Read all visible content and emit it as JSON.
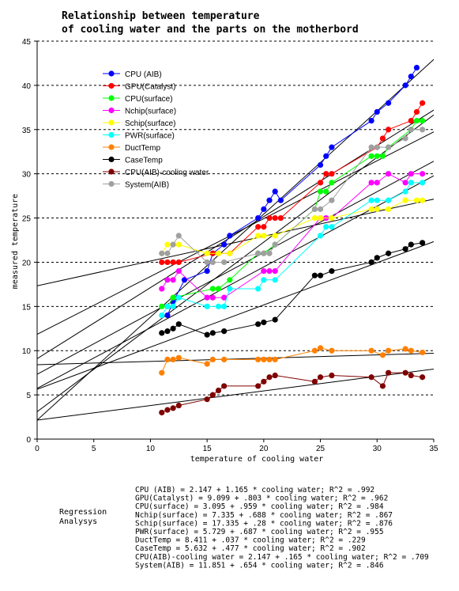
{
  "chart_data": {
    "type": "scatter",
    "title_lines": [
      "Relationship between temperature",
      "of cooling water and the parts on the motherbord"
    ],
    "xlabel": "temperature of cooling  water",
    "ylabel": "measured temperature",
    "xlim": [
      0,
      35
    ],
    "ylim": [
      0,
      45
    ],
    "x_ticks": [
      "0",
      "5",
      "10",
      "15",
      "20",
      "25",
      "30",
      "35"
    ],
    "y_ticks": [
      "0",
      "5",
      "10",
      "15",
      "20",
      "25",
      "30",
      "35",
      "40",
      "45"
    ],
    "grid": "horizontal dashed",
    "legend_position": "top-left",
    "series": [
      {
        "name": "CPU (AIB)",
        "color": "#0000ff",
        "intercept": 2.147,
        "slope": 1.165,
        "points": [
          [
            11.5,
            14
          ],
          [
            12,
            15.5
          ],
          [
            13,
            18
          ],
          [
            15,
            19
          ],
          [
            15.5,
            21
          ],
          [
            16.5,
            22
          ],
          [
            17,
            23
          ],
          [
            19.5,
            25
          ],
          [
            20,
            26
          ],
          [
            20.5,
            27
          ],
          [
            21,
            28
          ],
          [
            21.5,
            27
          ],
          [
            25,
            31
          ],
          [
            25.5,
            32
          ],
          [
            26,
            33
          ],
          [
            29.5,
            36
          ],
          [
            30,
            37
          ],
          [
            31,
            38
          ],
          [
            32.5,
            40
          ],
          [
            33,
            41
          ],
          [
            33.5,
            42
          ]
        ]
      },
      {
        "name": "GPU(Catalyst)",
        "color": "#ff0000",
        "intercept": 9.099,
        "slope": 0.803,
        "points": [
          [
            11,
            20
          ],
          [
            11.5,
            20
          ],
          [
            12,
            20
          ],
          [
            12.5,
            20
          ],
          [
            15.5,
            21
          ],
          [
            16,
            21
          ],
          [
            17,
            21
          ],
          [
            19.5,
            24
          ],
          [
            20,
            24
          ],
          [
            20.5,
            25
          ],
          [
            21,
            25
          ],
          [
            21.5,
            25
          ],
          [
            25,
            29
          ],
          [
            25.5,
            30
          ],
          [
            26,
            30
          ],
          [
            30,
            33
          ],
          [
            30.5,
            34
          ],
          [
            31,
            35
          ],
          [
            33,
            36
          ],
          [
            33.5,
            37
          ],
          [
            34,
            38
          ]
        ]
      },
      {
        "name": "CPU(surface)",
        "color": "#00ff00",
        "intercept": 3.095,
        "slope": 0.959,
        "points": [
          [
            11,
            15
          ],
          [
            11.5,
            15
          ],
          [
            12,
            16
          ],
          [
            15.5,
            17
          ],
          [
            16,
            17
          ],
          [
            17,
            18
          ],
          [
            19.5,
            21
          ],
          [
            20,
            21
          ],
          [
            21,
            22
          ],
          [
            24.5,
            26
          ],
          [
            25,
            28
          ],
          [
            25.5,
            28
          ],
          [
            26,
            29
          ],
          [
            29.5,
            32
          ],
          [
            30,
            32
          ],
          [
            30.5,
            32
          ],
          [
            31,
            33
          ],
          [
            33,
            35
          ],
          [
            33.5,
            36
          ],
          [
            34,
            36
          ]
        ]
      },
      {
        "name": "Nchip(surface)",
        "color": "#ff00ff",
        "intercept": 7.335,
        "slope": 0.688,
        "points": [
          [
            11,
            17
          ],
          [
            11.5,
            18
          ],
          [
            12,
            18
          ],
          [
            12.5,
            19
          ],
          [
            15,
            16
          ],
          [
            15.5,
            16
          ],
          [
            16.5,
            16
          ],
          [
            20,
            19
          ],
          [
            20.5,
            19
          ],
          [
            21,
            19
          ],
          [
            25,
            25
          ],
          [
            25.5,
            25
          ],
          [
            26,
            25
          ],
          [
            29.5,
            29
          ],
          [
            30,
            29
          ],
          [
            31,
            30
          ],
          [
            32.5,
            29
          ],
          [
            33,
            30
          ],
          [
            34,
            30
          ]
        ]
      },
      {
        "name": "Schip(surface)",
        "color": "#ffff00",
        "intercept": 17.335,
        "slope": 0.28,
        "points": [
          [
            11,
            21
          ],
          [
            11.5,
            22
          ],
          [
            12,
            22
          ],
          [
            12.5,
            22
          ],
          [
            15,
            21
          ],
          [
            16,
            21
          ],
          [
            17,
            21
          ],
          [
            19.5,
            23
          ],
          [
            20,
            23
          ],
          [
            21,
            23
          ],
          [
            24.5,
            25
          ],
          [
            25,
            25
          ],
          [
            26,
            25
          ],
          [
            29.5,
            26
          ],
          [
            30,
            26
          ],
          [
            31,
            26
          ],
          [
            32.5,
            27
          ],
          [
            33.5,
            27
          ],
          [
            34,
            27
          ]
        ]
      },
      {
        "name": "PWR(surface)",
        "color": "#00ffff",
        "intercept": 5.729,
        "slope": 0.687,
        "points": [
          [
            11,
            14
          ],
          [
            11.5,
            15
          ],
          [
            12,
            15
          ],
          [
            12.5,
            16
          ],
          [
            15,
            15
          ],
          [
            16,
            15
          ],
          [
            16.5,
            15
          ],
          [
            17,
            17
          ],
          [
            19.5,
            17
          ],
          [
            20,
            18
          ],
          [
            21,
            18
          ],
          [
            25,
            23
          ],
          [
            25.5,
            24
          ],
          [
            26,
            24
          ],
          [
            29.5,
            27
          ],
          [
            30,
            27
          ],
          [
            31,
            27
          ],
          [
            32.5,
            28
          ],
          [
            33,
            29
          ],
          [
            34,
            29
          ]
        ]
      },
      {
        "name": "DuctTemp",
        "color": "#ff8000",
        "intercept": 8.411,
        "slope": 0.037,
        "points": [
          [
            11,
            7.5
          ],
          [
            11.5,
            9
          ],
          [
            12,
            9
          ],
          [
            12.5,
            9.2
          ],
          [
            15,
            8.5
          ],
          [
            15.5,
            9
          ],
          [
            16.5,
            9
          ],
          [
            19.5,
            9
          ],
          [
            20,
            9
          ],
          [
            20.5,
            9
          ],
          [
            21,
            9
          ],
          [
            24.5,
            10
          ],
          [
            25,
            10.3
          ],
          [
            26,
            10
          ],
          [
            29.5,
            10
          ],
          [
            30.5,
            9.5
          ],
          [
            31,
            10
          ],
          [
            32.5,
            10.2
          ],
          [
            33,
            10
          ],
          [
            34,
            9.8
          ]
        ]
      },
      {
        "name": "CaseTemp",
        "color": "#000000",
        "intercept": 5.632,
        "slope": 0.477,
        "points": [
          [
            11,
            12
          ],
          [
            11.5,
            12.2
          ],
          [
            12,
            12.5
          ],
          [
            12.5,
            13
          ],
          [
            15,
            11.8
          ],
          [
            15.5,
            12
          ],
          [
            16.5,
            12.2
          ],
          [
            19.5,
            13
          ],
          [
            20,
            13.2
          ],
          [
            21,
            13.5
          ],
          [
            24.5,
            18.5
          ],
          [
            25,
            18.5
          ],
          [
            26,
            19
          ],
          [
            29.5,
            20
          ],
          [
            30,
            20.5
          ],
          [
            31,
            21
          ],
          [
            32.5,
            21.5
          ],
          [
            33,
            22
          ],
          [
            34,
            22.2
          ]
        ]
      },
      {
        "name": "CPU(AIB)-cooling water",
        "color": "#800000",
        "intercept": 2.147,
        "slope": 0.165,
        "points": [
          [
            11,
            3
          ],
          [
            11.5,
            3.3
          ],
          [
            12,
            3.5
          ],
          [
            12.5,
            3.8
          ],
          [
            15,
            4.5
          ],
          [
            15.5,
            5
          ],
          [
            16,
            5.5
          ],
          [
            16.5,
            6
          ],
          [
            19.5,
            6
          ],
          [
            20,
            6.5
          ],
          [
            20.5,
            7
          ],
          [
            21,
            7.2
          ],
          [
            24.5,
            6.5
          ],
          [
            25,
            7
          ],
          [
            26,
            7.2
          ],
          [
            29.5,
            7
          ],
          [
            30.5,
            6
          ],
          [
            31,
            7.5
          ],
          [
            32.5,
            7.5
          ],
          [
            33,
            7.2
          ],
          [
            34,
            7
          ]
        ]
      },
      {
        "name": "System(AIB)",
        "color": "#a0a0a0",
        "intercept": 11.851,
        "slope": 0.654,
        "points": [
          [
            11,
            21
          ],
          [
            11.5,
            21
          ],
          [
            12,
            22
          ],
          [
            12.5,
            23
          ],
          [
            15,
            20
          ],
          [
            15.5,
            20
          ],
          [
            16.5,
            20
          ],
          [
            19.5,
            21
          ],
          [
            20,
            21
          ],
          [
            20.5,
            21
          ],
          [
            21,
            22
          ],
          [
            24.5,
            26
          ],
          [
            25,
            26
          ],
          [
            26,
            27
          ],
          [
            29.5,
            33
          ],
          [
            30,
            33
          ],
          [
            31,
            33
          ],
          [
            32.5,
            34
          ],
          [
            33,
            35
          ],
          [
            34,
            35
          ]
        ]
      }
    ]
  },
  "regression": {
    "label_lines": [
      "Regression",
      "Analysys"
    ],
    "equations": [
      "CPU (AIB) = 2.147 + 1.165 * cooling water; R^2 = .992",
      "GPU(Catalyst) = 9.099 + .803 * cooling water; R^2 = .962",
      "CPU(surface) = 3.095 + .959 * cooling water; R^2 = .984",
      "Nchip(surface) = 7.335 + .688 * cooling water; R^2 = .867",
      "Schip(surface) = 17.335 + .28 * cooling water; R^2 = .876",
      "PWR(surface) = 5.729 + .687 * cooling water; R^2 = .955",
      "DuctTemp = 8.411 + .037 * cooling water; R^2 = .229",
      "CaseTemp = 5.632 + .477 * cooling water; R^2 = .902",
      "CPU(AIB)-cooling water = 2.147 + .165 * cooling water; R^2 = .709",
      "System(AIB) = 11.851 + .654 * cooling water; R^2 = .846"
    ]
  }
}
